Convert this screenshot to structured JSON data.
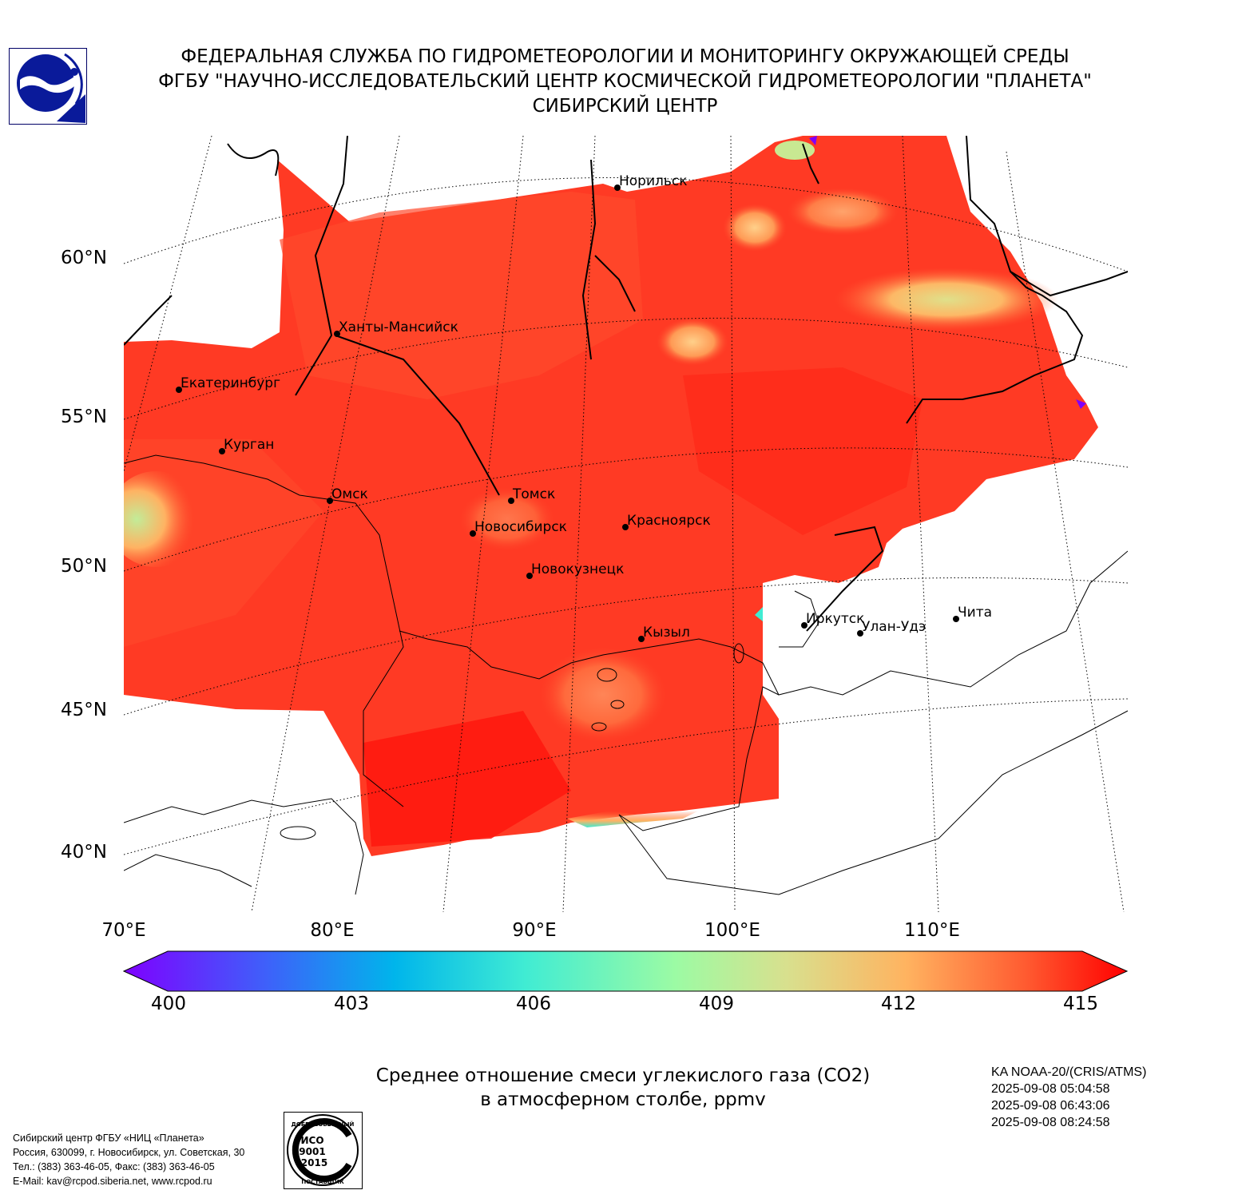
{
  "header": {
    "line1": "ФЕДЕРАЛЬНАЯ СЛУЖБА ПО ГИДРОМЕТЕОРОЛОГИИ И МОНИТОРИНГУ ОКРУЖАЮЩЕЙ СРЕДЫ",
    "line2": "ФГБУ \"НАУЧНО-ИССЛЕДОВАТЕЛЬСКИЙ ЦЕНТР КОСМИЧЕСКОЙ ГИДРОМЕТЕОРОЛОГИИ \"ПЛАНЕТА\"",
    "line3": "СИБИРСКИЙ ЦЕНТР"
  },
  "map": {
    "lat_labels": [
      "60°N",
      "55°N",
      "50°N",
      "45°N",
      "40°N"
    ],
    "lon_labels": [
      "70°E",
      "80°E",
      "90°E",
      "100°E",
      "110°E"
    ],
    "cities": [
      {
        "name": "Норильск"
      },
      {
        "name": "Ханты-Мансийск"
      },
      {
        "name": "Екатеринбург"
      },
      {
        "name": "Курган"
      },
      {
        "name": "Омск"
      },
      {
        "name": "Томск"
      },
      {
        "name": "Новосибирск"
      },
      {
        "name": "Красноярск"
      },
      {
        "name": "Новокузнецк"
      },
      {
        "name": "Кызыл"
      },
      {
        "name": "Иркутск"
      },
      {
        "name": "Улан-Удэ"
      },
      {
        "name": "Чита"
      }
    ]
  },
  "colorbar": {
    "ticks": [
      "400",
      "403",
      "406",
      "409",
      "412",
      "415"
    ],
    "min": 400,
    "max": 415,
    "colors": [
      "#7f00ff",
      "#3f5ffa",
      "#00b5eb",
      "#40ecd3",
      "#9cfba4",
      "#d8e08e",
      "#ffb360",
      "#ff5a30",
      "#ff0000"
    ]
  },
  "caption": {
    "line1": "Среднее отношение смеси углекислого газа (CO2)",
    "line2": "в атмосферном столбе, ppmv"
  },
  "satellite": {
    "name": "KA NOAA-20/(CRIS/ATMS)",
    "times": [
      "2025-09-08 05:04:58",
      "2025-09-08 06:43:06",
      "2025-09-08 08:24:58"
    ]
  },
  "contact": {
    "line1": "Сибирский центр ФГБУ «НИЦ «Планета»",
    "line2": "Россия, 630099, г. Новосибирск, ул. Советская, 30",
    "line3": "Тел.: (383) 363-46-05, Факс: (383) 363-46-05",
    "line4": "E-Mail: kav@rcpod.siberia.net, www.rcpod.ru"
  },
  "iso_stamp": {
    "top": "ДОБРОСОВЕСТНЫЙ",
    "code1": "ИСО",
    "code2": "9001",
    "code3": "-2015",
    "bottom": "ПОСТАВЩИК"
  }
}
